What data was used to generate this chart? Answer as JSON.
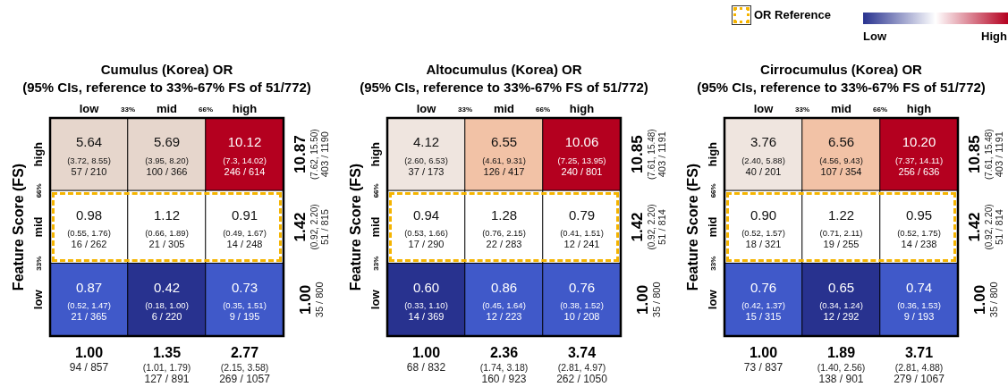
{
  "chart_data": [
    {
      "type": "heatmap",
      "title": "Cumulus (Korea) OR",
      "subtitle": "(95% CIs, reference to 33%-67% FS of 51/772)",
      "ylabel": "Feature Score (FS)",
      "categories": [
        "low",
        "mid",
        "high"
      ],
      "y_categories": [
        "high",
        "mid",
        "low"
      ],
      "y2_categories": [
        "10.87\n(7.62, 15.50)\n403 / 1190",
        "1.42\n(0.92, 2.20)\n51 / 815",
        "1.00\n35 / 800"
      ],
      "cells": [
        [
          5.64,
          5.69,
          10.12
        ],
        [
          0.98,
          1.12,
          0.91
        ],
        [
          0.87,
          0.42,
          0.73
        ]
      ],
      "cell_labels": [
        [
          "5.64",
          "5.69",
          "10.12"
        ],
        [
          "0.98",
          "1.12",
          "0.91"
        ],
        [
          "0.87",
          "0.42",
          "0.73"
        ]
      ],
      "data_labels": true,
      "colors": [
        [
          "#e6d6cc",
          "#e6d6cc",
          "#b4001f"
        ],
        [
          "#ffffff",
          "#ffffff",
          "#ffffff"
        ],
        [
          "#4059c9",
          "#28328f",
          "#4059c9"
        ]
      ],
      "annotations": [
        "33%",
        "66%",
        "66%",
        "33%",
        "1.00\n94 / 857",
        "1.35\n(1.01, 1.79)\n127 / 891",
        "2.77\n(2.15, 3.58)\n269 / 1057",
        "(3.72, 8.55)\n57 / 210",
        "(3.95, 8.20)\n100 / 366",
        "(7.3, 14.02)\n246 / 614",
        "(0.55, 1.76)\n16 / 262",
        "(0.66, 1.89)\n21 / 305",
        "(0.49, 1.67)\n14 / 248",
        "(0.52, 1.47)\n21 / 365",
        "(0.18, 1.00)\n6 / 220",
        "(0.35, 1.51)\n9 / 195"
      ]
    },
    {
      "type": "heatmap",
      "title": "Altocumulus (Korea) OR",
      "subtitle": "(95% CIs, reference to 33%-67% FS of 51/772)",
      "ylabel": "Feature Score (FS)",
      "categories": [
        "low",
        "mid",
        "high"
      ],
      "y_categories": [
        "high",
        "mid",
        "low"
      ],
      "y2_categories": [
        "10.85\n(7.61, 15.48)\n403 / 1191",
        "1.42\n(0.92, 2.20)\n51 / 814",
        "1.00\n35 / 800"
      ],
      "cells": [
        [
          4.12,
          6.55,
          10.06
        ],
        [
          0.94,
          1.28,
          0.79
        ],
        [
          0.6,
          0.86,
          0.76
        ]
      ],
      "cell_labels": [
        [
          "4.12",
          "6.55",
          "10.06"
        ],
        [
          "0.94",
          "1.28",
          "0.79"
        ],
        [
          "0.60",
          "0.86",
          "0.76"
        ]
      ],
      "data_labels": true,
      "colors": [
        [
          "#efe5df",
          "#f2c2a6",
          "#b4001f"
        ],
        [
          "#ffffff",
          "#ffffff",
          "#ffffff"
        ],
        [
          "#28328f",
          "#4059c9",
          "#4059c9"
        ]
      ],
      "annotations": [
        "33%",
        "66%",
        "66%",
        "33%",
        "1.00\n68 / 832",
        "2.36\n(1.74, 3.18)\n160 / 923",
        "3.74\n(2.81, 4.97)\n262 / 1050",
        "(2.60, 6.53)\n37 / 173",
        "(4.61, 9.31)\n126 / 417",
        "(7.25, 13.95)\n240 / 801",
        "(0.53, 1.66)\n17 / 290",
        "(0.76, 2.15)\n22 / 283",
        "(0.41, 1.51)\n12 / 241",
        "(0.33, 1.10)\n14 / 369",
        "(0.45, 1.64)\n12 / 223",
        "(0.38, 1.52)\n10 / 208"
      ]
    },
    {
      "type": "heatmap",
      "title": "Cirrocumulus (Korea) OR",
      "subtitle": "(95% CIs, reference to 33%-67% FS of 51/772)",
      "ylabel": "Feature Score (FS)",
      "categories": [
        "low",
        "mid",
        "high"
      ],
      "y_categories": [
        "high",
        "mid",
        "low"
      ],
      "y2_categories": [
        "10.85\n(7.61, 15.48)\n403 / 1191",
        "1.42\n(0.92, 2.20)\n51 / 814",
        "1.00\n35 / 800"
      ],
      "cells": [
        [
          3.76,
          6.56,
          10.2
        ],
        [
          0.9,
          1.22,
          0.95
        ],
        [
          0.76,
          0.65,
          0.74
        ]
      ],
      "cell_labels": [
        [
          "3.76",
          "6.56",
          "10.20"
        ],
        [
          "0.90",
          "1.22",
          "0.95"
        ],
        [
          "0.76",
          "0.65",
          "0.74"
        ]
      ],
      "data_labels": true,
      "colors": [
        [
          "#efe5df",
          "#f2c2a6",
          "#b4001f"
        ],
        [
          "#ffffff",
          "#ffffff",
          "#ffffff"
        ],
        [
          "#4059c9",
          "#28328f",
          "#4059c9"
        ]
      ],
      "annotations": [
        "33%",
        "66%",
        "66%",
        "33%",
        "OR Reference",
        "Low",
        "High",
        "1.00\n73 / 837",
        "1.89\n(1.40, 2.56)\n138 / 901",
        "3.71\n(2.81, 4.88)\n279 / 1067",
        "(2.40, 5.88)\n40 / 201",
        "(4.56, 9.43)\n107 / 354",
        "(7.37, 14.11)\n256 / 636",
        "(0.52, 1.57)\n18 / 321",
        "(0.71, 2.11)\n19 / 255",
        "(0.52, 1.75)\n14 / 238",
        "(0.42, 1.37)\n15 / 315",
        "(0.34, 1.24)\n12 / 292",
        "(0.36, 1.53)\n9 / 193"
      ]
    }
  ]
}
